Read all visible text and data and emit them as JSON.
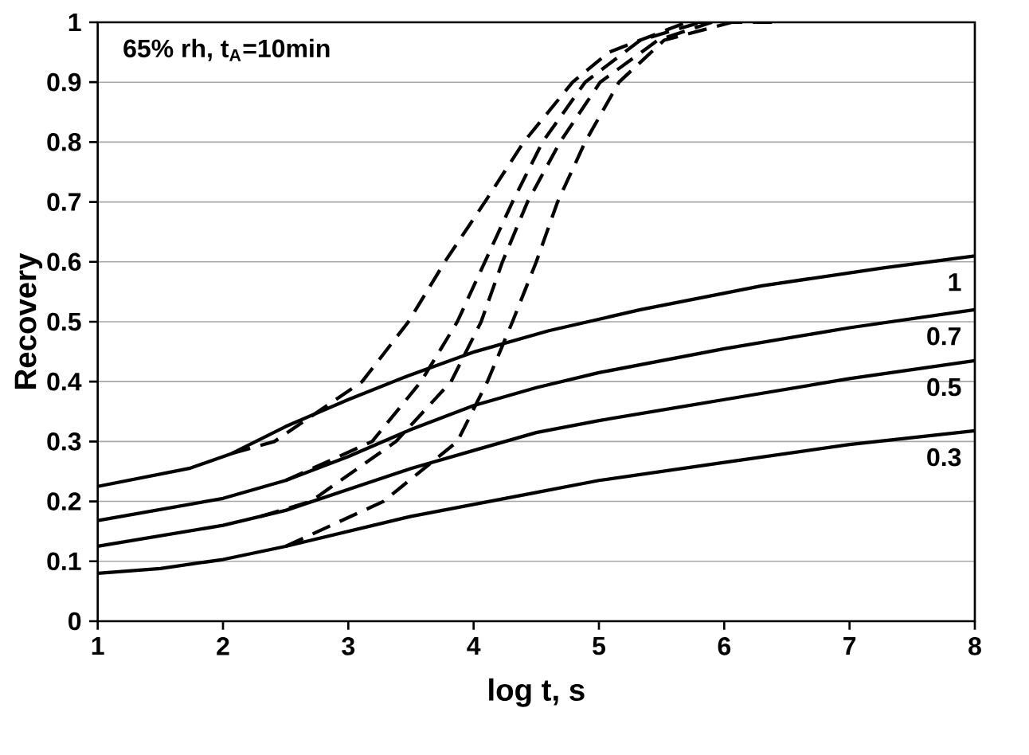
{
  "chart_data": {
    "type": "line",
    "xlabel": "log t, s",
    "ylabel": "Recovery",
    "annotations": [
      "65% rh, t$_{A}$=10min"
    ],
    "xlim": [
      1,
      8
    ],
    "xticks": [
      1,
      2,
      3,
      4,
      5,
      6,
      7,
      8
    ],
    "ylim": [
      0,
      1
    ],
    "yticks": [
      0,
      0.1,
      0.2,
      0.3,
      0.4,
      0.5,
      0.6,
      0.7,
      0.8,
      0.9,
      1
    ],
    "grid": "y",
    "legend": false,
    "marker": "none",
    "line_style": "solid",
    "series": [
      {
        "name": "1",
        "color": "#000000",
        "x": [
          1,
          1.73,
          2.07,
          2.5,
          3,
          3.48,
          4.01,
          4.6,
          5.33,
          6.3,
          7.27,
          8
        ],
        "values": [
          0.225,
          0.255,
          0.28,
          0.325,
          0.37,
          0.41,
          0.45,
          0.485,
          0.52,
          0.56,
          0.59,
          0.61
        ]
      },
      {
        "name": "0.7",
        "color": "#000000",
        "x": [
          1,
          2,
          2.5,
          3,
          3.5,
          4,
          4.5,
          5,
          6,
          7,
          8
        ],
        "values": [
          0.168,
          0.205,
          0.235,
          0.275,
          0.32,
          0.36,
          0.39,
          0.415,
          0.455,
          0.49,
          0.52
        ]
      },
      {
        "name": "0.5",
        "color": "#000000",
        "x": [
          1,
          2,
          2.5,
          3,
          3.5,
          4,
          4.5,
          5,
          6,
          7,
          8
        ],
        "values": [
          0.125,
          0.16,
          0.185,
          0.22,
          0.255,
          0.285,
          0.315,
          0.335,
          0.37,
          0.405,
          0.435
        ]
      },
      {
        "name": "0.3",
        "color": "#000000",
        "x": [
          1,
          1.5,
          2,
          2.5,
          3,
          3.5,
          4,
          4.5,
          5,
          6,
          7,
          8
        ],
        "values": [
          0.08,
          0.088,
          0.103,
          0.125,
          0.15,
          0.175,
          0.195,
          0.215,
          0.235,
          0.265,
          0.295,
          0.318
        ]
      },
      {
        "color": "#000000",
        "line_style": "dashed",
        "x": [
          2.07,
          2.41,
          3.11,
          3.48,
          3.77,
          4.09,
          4.4,
          4.79,
          5.08,
          5.7,
          6.4
        ],
        "values": [
          0.28,
          0.3,
          0.4,
          0.5,
          0.6,
          0.7,
          0.8,
          0.9,
          0.95,
          1,
          1
        ]
      },
      {
        "color": "#000000",
        "line_style": "dashed",
        "x": [
          2.5,
          3.19,
          3.58,
          3.87,
          4.09,
          4.31,
          4.55,
          4.89,
          5.33,
          5.81
        ],
        "values": [
          0.235,
          0.3,
          0.4,
          0.5,
          0.6,
          0.7,
          0.8,
          0.9,
          0.97,
          1
        ]
      },
      {
        "color": "#000000",
        "line_style": "dashed",
        "x": [
          2.3,
          2.7,
          3.38,
          3.82,
          4.06,
          4.23,
          4.43,
          4.69,
          5.01,
          5.47,
          5.9
        ],
        "values": [
          0.175,
          0.2,
          0.3,
          0.4,
          0.5,
          0.6,
          0.7,
          0.8,
          0.9,
          0.97,
          1
        ]
      },
      {
        "color": "#000000",
        "line_style": "dashed",
        "x": [
          2.5,
          3.28,
          3.87,
          4.11,
          4.31,
          4.5,
          4.67,
          4.89,
          5.16,
          5.52,
          6.06
        ],
        "values": [
          0.125,
          0.2,
          0.3,
          0.4,
          0.5,
          0.6,
          0.7,
          0.8,
          0.9,
          0.97,
          1
        ]
      }
    ]
  }
}
